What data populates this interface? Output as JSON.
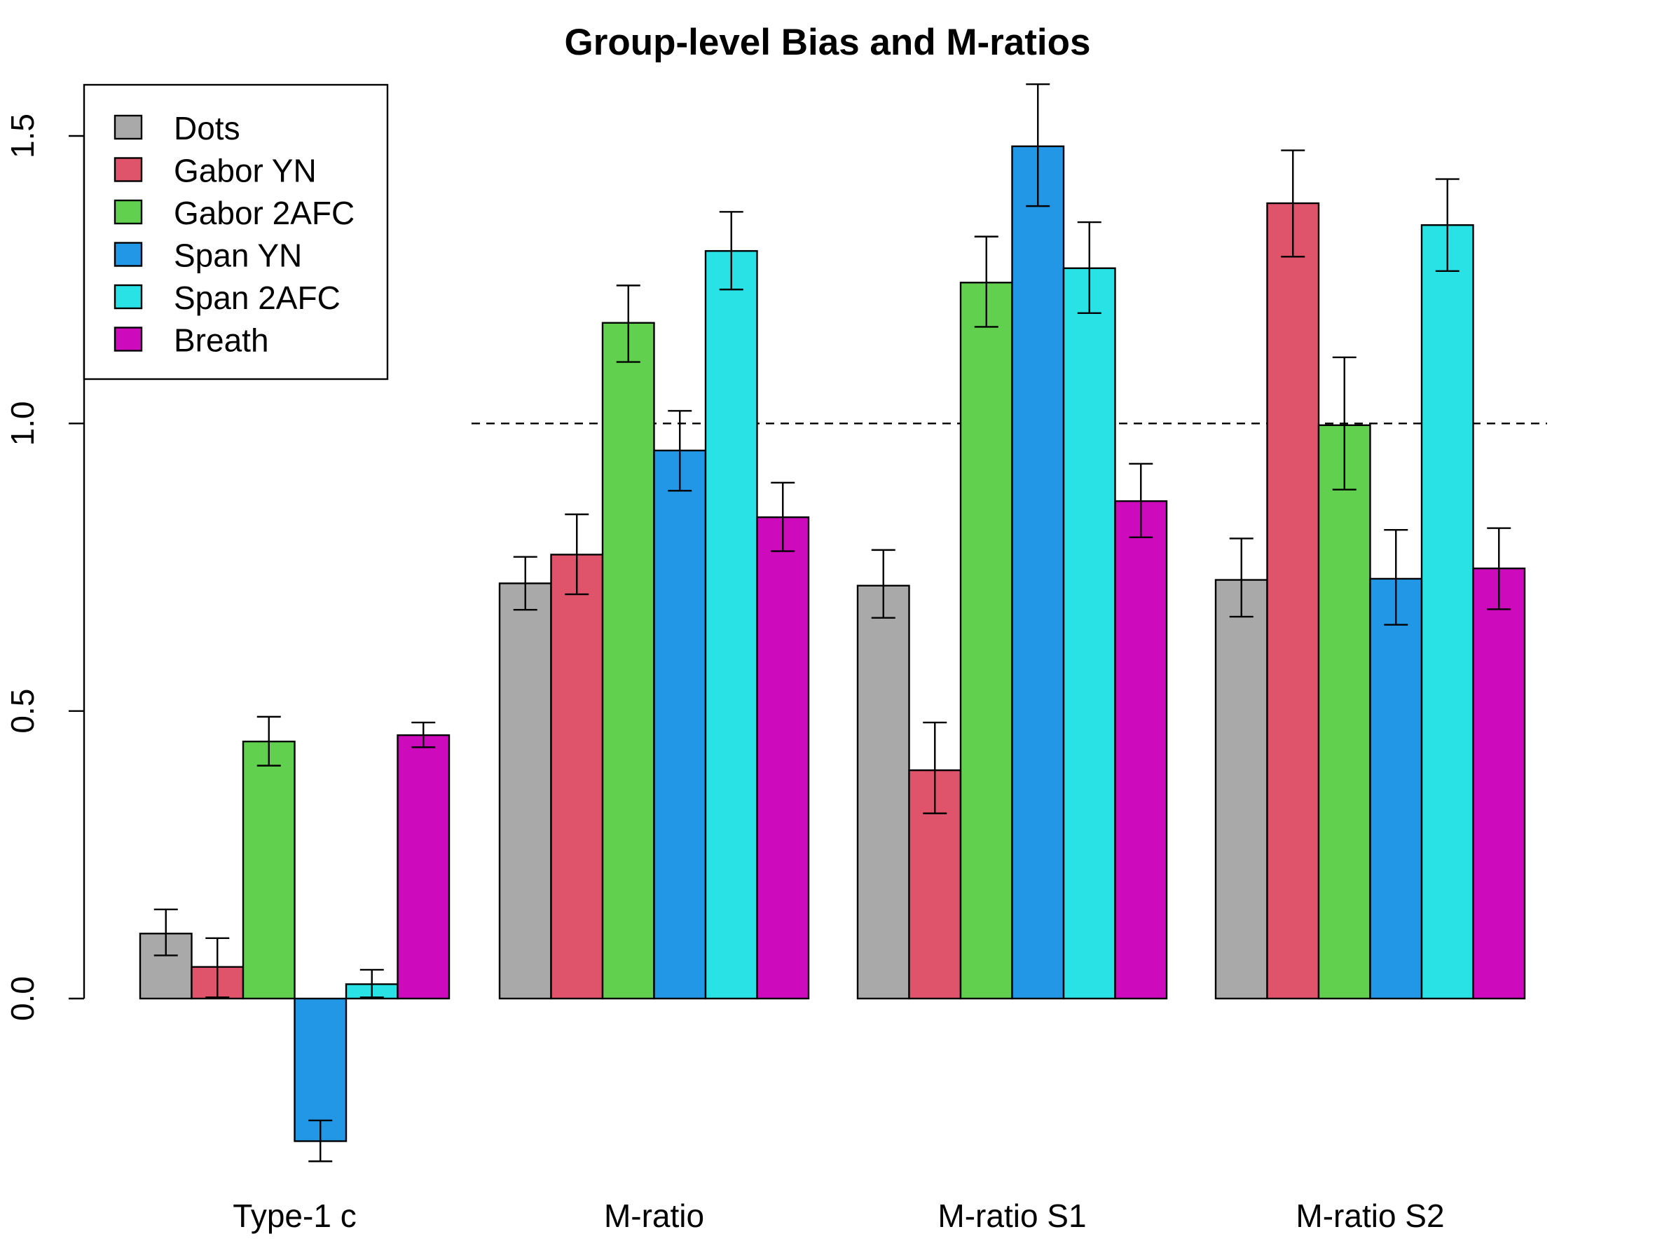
{
  "chart_data": {
    "type": "bar",
    "title": "Group-level Bias and M-ratios",
    "xlabel": "",
    "ylabel": "",
    "categories": [
      "Type-1 c",
      "M-ratio",
      "M-ratio S1",
      "M-ratio S2"
    ],
    "ylim": [
      -0.35,
      1.6
    ],
    "yticks": [
      0.0,
      0.5,
      1.0,
      1.5
    ],
    "ytick_labels": [
      "0.0",
      "0.5",
      "1.0",
      "1.5"
    ],
    "reference_line": {
      "y": 1.0,
      "style": "dashed",
      "spans_groups": [
        1,
        2,
        3
      ]
    },
    "legend_position": "top-left",
    "grid": false,
    "series": [
      {
        "name": "Dots",
        "color": "#a9a9a9",
        "values": [
          0.113,
          0.722,
          0.718,
          0.728
        ],
        "error_low": [
          0.075,
          0.676,
          0.662,
          0.664
        ],
        "error_high": [
          0.155,
          0.768,
          0.78,
          0.8
        ]
      },
      {
        "name": "Gabor YN",
        "color": "#df536b",
        "values": [
          0.055,
          0.772,
          0.397,
          1.383
        ],
        "error_low": [
          0.002,
          0.703,
          0.322,
          1.29
        ],
        "error_high": [
          0.105,
          0.842,
          0.48,
          1.475
        ]
      },
      {
        "name": "Gabor 2AFC",
        "color": "#61d04f",
        "values": [
          0.447,
          1.175,
          1.245,
          0.997
        ],
        "error_low": [
          0.405,
          1.107,
          1.168,
          0.885
        ],
        "error_high": [
          0.49,
          1.24,
          1.325,
          1.115
        ]
      },
      {
        "name": "Span YN",
        "color": "#2297e6",
        "values": [
          -0.248,
          0.953,
          1.482,
          0.73
        ],
        "error_low": [
          -0.283,
          0.883,
          1.378,
          0.65
        ],
        "error_high": [
          -0.212,
          1.022,
          1.59,
          0.815
        ]
      },
      {
        "name": "Span 2AFC",
        "color": "#28e2e5",
        "values": [
          0.025,
          1.3,
          1.27,
          1.345
        ],
        "error_low": [
          0.002,
          1.233,
          1.192,
          1.265
        ],
        "error_high": [
          0.05,
          1.368,
          1.35,
          1.425
        ]
      },
      {
        "name": "Breath",
        "color": "#cd0bbc",
        "values": [
          0.458,
          0.837,
          0.865,
          0.748
        ],
        "error_low": [
          0.437,
          0.778,
          0.802,
          0.677
        ],
        "error_high": [
          0.48,
          0.897,
          0.93,
          0.818
        ]
      }
    ]
  }
}
